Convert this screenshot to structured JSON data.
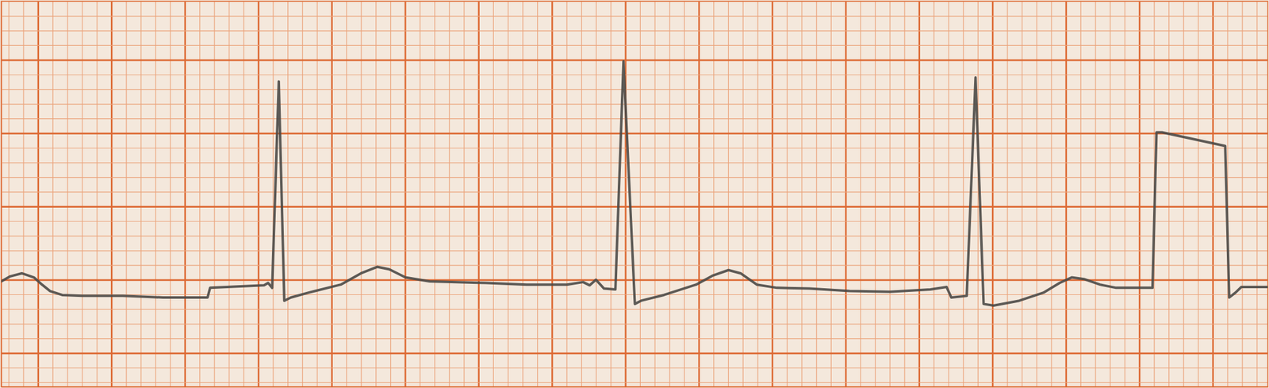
{
  "chart_data": {
    "type": "line",
    "x": [
      -0.1,
      -0.077,
      -0.044,
      -0.011,
      0.011,
      0.033,
      0.066,
      0.121,
      0.231,
      0.341,
      0.462,
      0.469,
      0.561,
      0.616,
      0.627,
      0.638,
      0.656,
      0.671,
      0.689,
      0.737,
      0.825,
      0.88,
      0.924,
      0.957,
      1.001,
      1.067,
      1.221,
      1.331,
      1.441,
      1.485,
      1.503,
      1.52,
      1.542,
      1.573,
      1.595,
      1.626,
      1.643,
      1.705,
      1.793,
      1.837,
      1.881,
      1.914,
      1.958,
      2.013,
      2.101,
      2.211,
      2.321,
      2.431,
      2.475,
      2.488,
      2.53,
      2.554,
      2.576,
      2.603,
      2.673,
      2.739,
      2.783,
      2.816,
      2.849,
      2.893,
      2.937,
      3.036,
      3.047,
      3.062,
      3.234,
      3.245,
      3.262,
      3.278,
      3.35
    ],
    "values": [
      -0.011,
      0.022,
      0.044,
      0.016,
      -0.033,
      -0.077,
      -0.104,
      -0.11,
      -0.11,
      -0.121,
      -0.121,
      -0.055,
      -0.044,
      -0.038,
      -0.022,
      -0.055,
      1.352,
      -0.143,
      -0.121,
      -0.088,
      -0.033,
      0.044,
      0.088,
      0.071,
      0.016,
      -0.011,
      -0.022,
      -0.033,
      -0.033,
      -0.016,
      -0.038,
      0,
      -0.06,
      -0.066,
      1.49,
      -0.165,
      -0.143,
      -0.104,
      -0.033,
      0.027,
      0.066,
      0.044,
      -0.033,
      -0.055,
      -0.06,
      -0.077,
      -0.082,
      -0.066,
      -0.049,
      -0.121,
      -0.11,
      1.38,
      -0.165,
      -0.176,
      -0.143,
      -0.088,
      -0.022,
      0.016,
      0.005,
      -0.033,
      -0.055,
      -0.055,
      1.006,
      1.006,
      0.913,
      -0.121,
      -0.088,
      -0.049,
      -0.049
    ],
    "xlim": [
      -0.1,
      3.35
    ],
    "ylim": [
      -0.73,
      1.9
    ],
    "xticks": [
      -0.08,
      -0.04,
      0,
      0.04,
      0.08,
      0.12,
      0.16,
      0.2,
      0.24,
      0.28,
      0.32,
      0.36,
      0.4,
      0.44,
      0.48,
      0.52,
      0.56,
      0.6,
      0.64,
      0.68,
      0.72,
      0.76,
      0.8,
      0.84,
      0.88,
      0.92,
      0.96,
      1,
      1.04,
      1.08,
      1.12,
      1.16,
      1.2,
      1.24,
      1.28,
      1.32,
      1.36,
      1.4,
      1.44,
      1.48,
      1.52,
      1.56,
      1.6,
      1.64,
      1.68,
      1.72,
      1.76,
      1.8,
      1.84,
      1.88,
      1.92,
      1.96,
      2,
      2.04,
      2.08,
      2.12,
      2.16,
      2.2,
      2.24,
      2.28,
      2.32,
      2.36,
      2.4,
      2.44,
      2.48,
      2.52,
      2.56,
      2.6,
      2.64,
      2.68,
      2.72,
      2.76,
      2.8,
      2.84,
      2.88,
      2.92,
      2.96,
      3,
      3.04,
      3.08,
      3.12,
      3.16,
      3.2,
      3.24,
      3.28,
      3.32
    ],
    "yticks": [
      -0.7,
      -0.6,
      -0.5,
      -0.4,
      -0.3,
      -0.2,
      -0.1,
      0,
      0.1,
      0.2,
      0.3,
      0.4,
      0.5,
      0.6,
      0.7,
      0.8,
      0.9,
      1,
      1.1,
      1.2,
      1.3,
      1.4,
      1.5,
      1.6,
      1.7,
      1.8,
      1.9
    ],
    "grid": true,
    "tick_labels": false,
    "color": "#4d4a47"
  }
}
